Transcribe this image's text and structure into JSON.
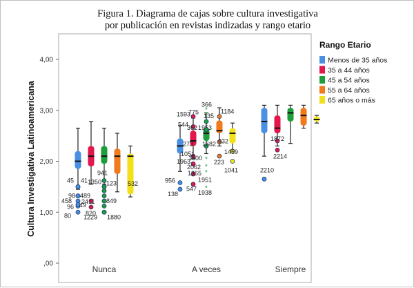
{
  "chart_data": {
    "type": "boxplot",
    "title_line1": "Figura 1. Diagrama de cajas sobre cultura investigativa",
    "title_line2": "por publicación en revistas indizadas y rango etario",
    "ylabel": "Cultura Investigativa Latinoamericana",
    "ylim": [
      0,
      4.4
    ],
    "yticks": [
      {
        "value": 0,
        "label": ",00"
      },
      {
        "value": 1,
        "label": "1,00"
      },
      {
        "value": 2,
        "label": "2,00"
      },
      {
        "value": 3,
        "label": "3,00"
      },
      {
        "value": 4,
        "label": "4,00"
      }
    ],
    "categories": [
      "Nunca",
      "A veces",
      "Siempre"
    ],
    "legend_title": "Rango Etario",
    "legend_position": "right",
    "series": [
      {
        "name": "Menos de 35 años",
        "color": "#4a90e2"
      },
      {
        "name": "35 a 44 años",
        "color": "#e3174b"
      },
      {
        "name": "45 a 54 años",
        "color": "#1e9e3a"
      },
      {
        "name": "55 a 64 años",
        "color": "#f07a1c"
      },
      {
        "name": "65 años o más",
        "color": "#f2e01b"
      }
    ],
    "boxes": [
      {
        "category": "Nunca",
        "series": 0,
        "min": 1.45,
        "q1": 1.85,
        "median": 2.0,
        "q3": 2.2,
        "max": 2.65
      },
      {
        "category": "Nunca",
        "series": 1,
        "min": 1.55,
        "q1": 1.9,
        "median": 2.1,
        "q3": 2.3,
        "max": 2.78
      },
      {
        "category": "Nunca",
        "series": 2,
        "min": 1.55,
        "q1": 1.95,
        "median": 2.1,
        "q3": 2.3,
        "max": 2.65
      },
      {
        "category": "Nunca",
        "series": 3,
        "min": 1.4,
        "q1": 1.75,
        "median": 2.1,
        "q3": 2.25,
        "max": 2.55
      },
      {
        "category": "Nunca",
        "series": 4,
        "min": 1.3,
        "q1": 1.35,
        "median": 2.1,
        "q3": 2.15,
        "max": 2.3
      },
      {
        "category": "A veces",
        "series": 0,
        "min": 1.8,
        "q1": 2.15,
        "median": 2.3,
        "q3": 2.45,
        "max": 2.7
      },
      {
        "category": "A veces",
        "series": 1,
        "min": 2.05,
        "q1": 2.3,
        "median": 2.4,
        "q3": 2.6,
        "max": 2.85
      },
      {
        "category": "A veces",
        "series": 2,
        "min": 2.15,
        "q1": 2.4,
        "median": 2.55,
        "q3": 2.65,
        "max": 2.95
      },
      {
        "category": "A veces",
        "series": 3,
        "min": 2.3,
        "q1": 2.55,
        "median": 2.6,
        "q3": 2.8,
        "max": 3.05
      },
      {
        "category": "A veces",
        "series": 4,
        "min": 2.2,
        "q1": 2.35,
        "median": 2.55,
        "q3": 2.65,
        "max": 2.75
      },
      {
        "category": "Siempre",
        "series": 0,
        "min": 2.1,
        "q1": 2.55,
        "median": 2.78,
        "q3": 3.05,
        "max": 3.1
      },
      {
        "category": "Siempre",
        "series": 1,
        "min": 2.3,
        "q1": 2.55,
        "median": 2.65,
        "q3": 2.9,
        "max": 3.1
      },
      {
        "category": "Siempre",
        "series": 2,
        "min": 2.35,
        "q1": 2.78,
        "median": 2.95,
        "q3": 3.05,
        "max": 3.1
      },
      {
        "category": "Siempre",
        "series": 3,
        "min": 2.65,
        "q1": 2.7,
        "median": 2.9,
        "q3": 3.05,
        "max": 3.1
      },
      {
        "category": "Siempre",
        "series": 4,
        "min": 2.75,
        "q1": 2.78,
        "median": 2.82,
        "q3": 2.88,
        "max": 2.9
      }
    ],
    "outliers": [
      {
        "category": "Nunca",
        "series": 0,
        "value": 1.32,
        "label": "98",
        "kind": "circle"
      },
      {
        "category": "Nunca",
        "series": 0,
        "value": 1.22,
        "label": "458",
        "kind": "circle"
      },
      {
        "category": "Nunca",
        "series": 0,
        "value": 1.12,
        "label": "96",
        "kind": "circle"
      },
      {
        "category": "Nunca",
        "series": 0,
        "value": 1.32,
        "label": "489",
        "kind": "circle"
      },
      {
        "category": "Nunca",
        "series": 0,
        "value": 1.15,
        "label": "49",
        "kind": "circle"
      },
      {
        "category": "Nunca",
        "series": 0,
        "value": 1.5,
        "label": "45",
        "kind": "circle"
      },
      {
        "category": "Nunca",
        "series": 0,
        "value": 1.5,
        "label": "41",
        "kind": "circle"
      },
      {
        "category": "Nunca",
        "series": 0,
        "value": 1.0,
        "label": "80",
        "kind": "circle"
      },
      {
        "category": "Nunca",
        "series": 1,
        "value": 1.1,
        "label": "820",
        "kind": "circle"
      },
      {
        "category": "Nunca",
        "series": 1,
        "value": 1.22,
        "label": "2411",
        "kind": "circle"
      },
      {
        "category": "Nunca",
        "series": 2,
        "value": 1.5,
        "label": "1350",
        "kind": "circle"
      },
      {
        "category": "Nunca",
        "series": 2,
        "value": 1.42,
        "label": "",
        "kind": "circle"
      },
      {
        "category": "Nunca",
        "series": 2,
        "value": 1.32,
        "label": "",
        "kind": "circle"
      },
      {
        "category": "Nunca",
        "series": 2,
        "value": 1.22,
        "label": "",
        "kind": "circle"
      },
      {
        "category": "Nunca",
        "series": 2,
        "value": 1.12,
        "label": "",
        "kind": "circle"
      },
      {
        "category": "Nunca",
        "series": 2,
        "value": 1.0,
        "label": "1229",
        "kind": "circle"
      },
      {
        "category": "Nunca",
        "series": 2,
        "value": 1.0,
        "label": "1880",
        "kind": "circle"
      },
      {
        "category": "Nunca",
        "series": 2,
        "value": 1.62,
        "label": "941",
        "kind": "circle"
      },
      {
        "category": "Nunca",
        "series": 2,
        "value": 1.5,
        "label": "123",
        "kind": "circle"
      },
      {
        "category": "Nunca",
        "series": 2,
        "value": 1.22,
        "label": "849",
        "kind": "circle"
      },
      {
        "category": "Nunca",
        "series": 4,
        "value": 1.52,
        "label": "532",
        "kind": "none"
      },
      {
        "category": "A veces",
        "series": 0,
        "value": 1.58,
        "label": "956",
        "kind": "circle"
      },
      {
        "category": "A veces",
        "series": 0,
        "value": 1.45,
        "label": "138",
        "kind": "circle"
      },
      {
        "category": "A veces",
        "series": 1,
        "value": 1.75,
        "label": "1365",
        "kind": "circle"
      },
      {
        "category": "A veces",
        "series": 1,
        "value": 1.55,
        "label": "547",
        "kind": "circle"
      },
      {
        "category": "A veces",
        "series": 1,
        "value": 2.1,
        "label": "1051",
        "kind": "circle"
      },
      {
        "category": "A veces",
        "series": 1,
        "value": 1.95,
        "label": "1963",
        "kind": "circle"
      },
      {
        "category": "A veces",
        "series": 1,
        "value": 2.88,
        "label": "1593",
        "kind": "circle"
      },
      {
        "category": "A veces",
        "series": 1,
        "value": 2.68,
        "label": "544",
        "kind": "circle"
      },
      {
        "category": "A veces",
        "series": 2,
        "value": 2.78,
        "label": "",
        "kind": "circle"
      },
      {
        "category": "A veces",
        "series": 2,
        "value": 3.02,
        "label": "366",
        "kind": "star"
      },
      {
        "category": "A veces",
        "series": 2,
        "value": 2.92,
        "label": "775",
        "kind": "star"
      },
      {
        "category": "A veces",
        "series": 2,
        "value": 2.85,
        "label": "135",
        "kind": "star"
      },
      {
        "category": "A veces",
        "series": 2,
        "value": 2.62,
        "label": "1953",
        "kind": "circle"
      },
      {
        "category": "A veces",
        "series": 2,
        "value": 2.62,
        "label": "362",
        "kind": "circle"
      },
      {
        "category": "A veces",
        "series": 2,
        "value": 2.3,
        "label": "273",
        "kind": "circle"
      },
      {
        "category": "A veces",
        "series": 2,
        "value": 2.3,
        "label": "1682",
        "kind": "circle"
      },
      {
        "category": "A veces",
        "series": 2,
        "value": 2.05,
        "label": "1500",
        "kind": "star"
      },
      {
        "category": "A veces",
        "series": 2,
        "value": 1.9,
        "label": "2062",
        "kind": "star"
      },
      {
        "category": "A veces",
        "series": 2,
        "value": 1.78,
        "label": "1951",
        "kind": "star"
      },
      {
        "category": "A veces",
        "series": 2,
        "value": 1.48,
        "label": "1938",
        "kind": "star"
      },
      {
        "category": "A veces",
        "series": 3,
        "value": 2.88,
        "label": "1184",
        "kind": "circle"
      },
      {
        "category": "A veces",
        "series": 3,
        "value": 2.38,
        "label": "632",
        "kind": "circle"
      },
      {
        "category": "A veces",
        "series": 3,
        "value": 2.1,
        "label": "223",
        "kind": "circle"
      },
      {
        "category": "A veces",
        "series": 4,
        "value": 2.2,
        "label": "1459",
        "kind": "circle"
      },
      {
        "category": "A veces",
        "series": 4,
        "value": 2.0,
        "label": "1041",
        "kind": "circle"
      },
      {
        "category": "Siempre",
        "series": 0,
        "value": 1.65,
        "label": "2210",
        "kind": "circle"
      },
      {
        "category": "Siempre",
        "series": 1,
        "value": 2.22,
        "label": "2214",
        "kind": "circle"
      },
      {
        "category": "Siempre",
        "series": 1,
        "value": 2.4,
        "label": "1872",
        "kind": "circle"
      }
    ]
  }
}
